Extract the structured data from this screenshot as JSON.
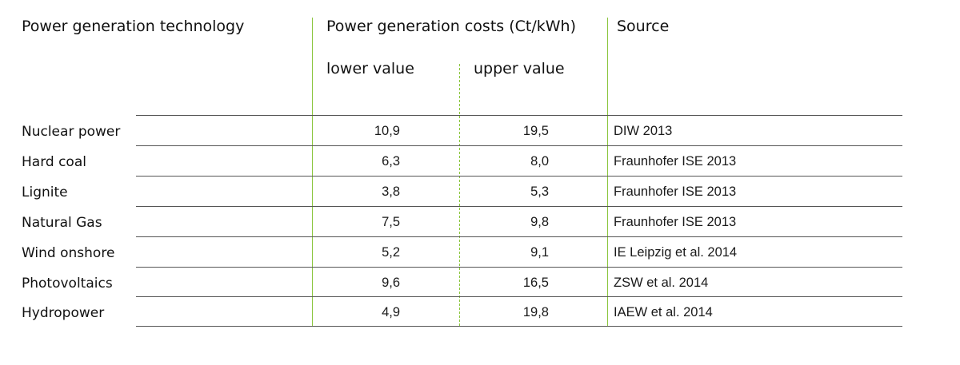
{
  "headers": {
    "technology": "Power generation technology",
    "costs": "Power generation costs (Ct/kWh)",
    "lower": "lower value",
    "upper": "upper value",
    "source": "Source"
  },
  "rows": [
    {
      "technology": "Nuclear power",
      "lower": "10,9",
      "upper": "19,5",
      "source": "DIW 2013"
    },
    {
      "technology": "Hard coal",
      "lower": "6,3",
      "upper": "8,0",
      "source": "Fraunhofer ISE 2013"
    },
    {
      "technology": "Lignite",
      "lower": "3,8",
      "upper": "5,3",
      "source": "Fraunhofer ISE 2013"
    },
    {
      "technology": "Natural Gas",
      "lower": "7,5",
      "upper": "9,8",
      "source": "Fraunhofer ISE 2013"
    },
    {
      "technology": "Wind onshore",
      "lower": "5,2",
      "upper": "9,1",
      "source": "IE Leipzig et al. 2014"
    },
    {
      "technology": "Photovoltaics",
      "lower": "9,6",
      "upper": "16,5",
      "source": "ZSW et al. 2014"
    },
    {
      "technology": "Hydropower",
      "lower": "4,9",
      "upper": "19,8",
      "source": "IAEW et al. 2014"
    }
  ],
  "colors": {
    "accent_line": "#8cc63f",
    "rule_line": "#555555"
  }
}
